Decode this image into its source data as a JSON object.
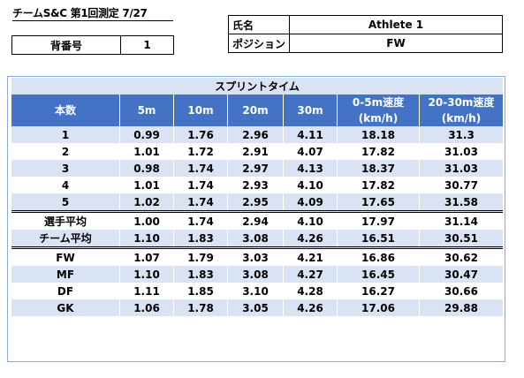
{
  "title": "チームS&C 第1回測定 7/27",
  "bib": {
    "label": "背番号",
    "value": "1"
  },
  "athlete": {
    "name_label": "氏名",
    "name_value": "Athlete 1",
    "position_label": "ポジション",
    "position_value": "FW"
  },
  "table": {
    "caption": "スプリントタイム",
    "headers": [
      "本数",
      "5m",
      "10m",
      "20m",
      "30m",
      "0-5m速度\n(km/h)",
      "20-30m速度\n(km/h)"
    ],
    "rows": [
      [
        "1",
        "0.99",
        "1.76",
        "2.96",
        "4.11",
        "18.18",
        "31.3"
      ],
      [
        "2",
        "1.01",
        "1.72",
        "2.91",
        "4.07",
        "17.82",
        "31.03"
      ],
      [
        "3",
        "0.98",
        "1.74",
        "2.97",
        "4.13",
        "18.37",
        "31.03"
      ],
      [
        "4",
        "1.01",
        "1.74",
        "2.93",
        "4.10",
        "17.82",
        "30.77"
      ],
      [
        "5",
        "1.02",
        "1.74",
        "2.95",
        "4.09",
        "17.65",
        "31.58"
      ],
      [
        "選手平均",
        "1.00",
        "1.74",
        "2.94",
        "4.10",
        "17.97",
        "31.14"
      ],
      [
        "チーム平均",
        "1.10",
        "1.83",
        "3.08",
        "4.26",
        "16.51",
        "30.51"
      ],
      [
        "FW",
        "1.07",
        "1.79",
        "3.03",
        "4.21",
        "16.86",
        "30.62"
      ],
      [
        "MF",
        "1.10",
        "1.83",
        "3.08",
        "4.27",
        "16.45",
        "30.47"
      ],
      [
        "DF",
        "1.11",
        "1.85",
        "3.10",
        "4.28",
        "16.27",
        "30.66"
      ],
      [
        "GK",
        "1.06",
        "1.78",
        "3.05",
        "4.26",
        "17.06",
        "29.88"
      ]
    ]
  }
}
